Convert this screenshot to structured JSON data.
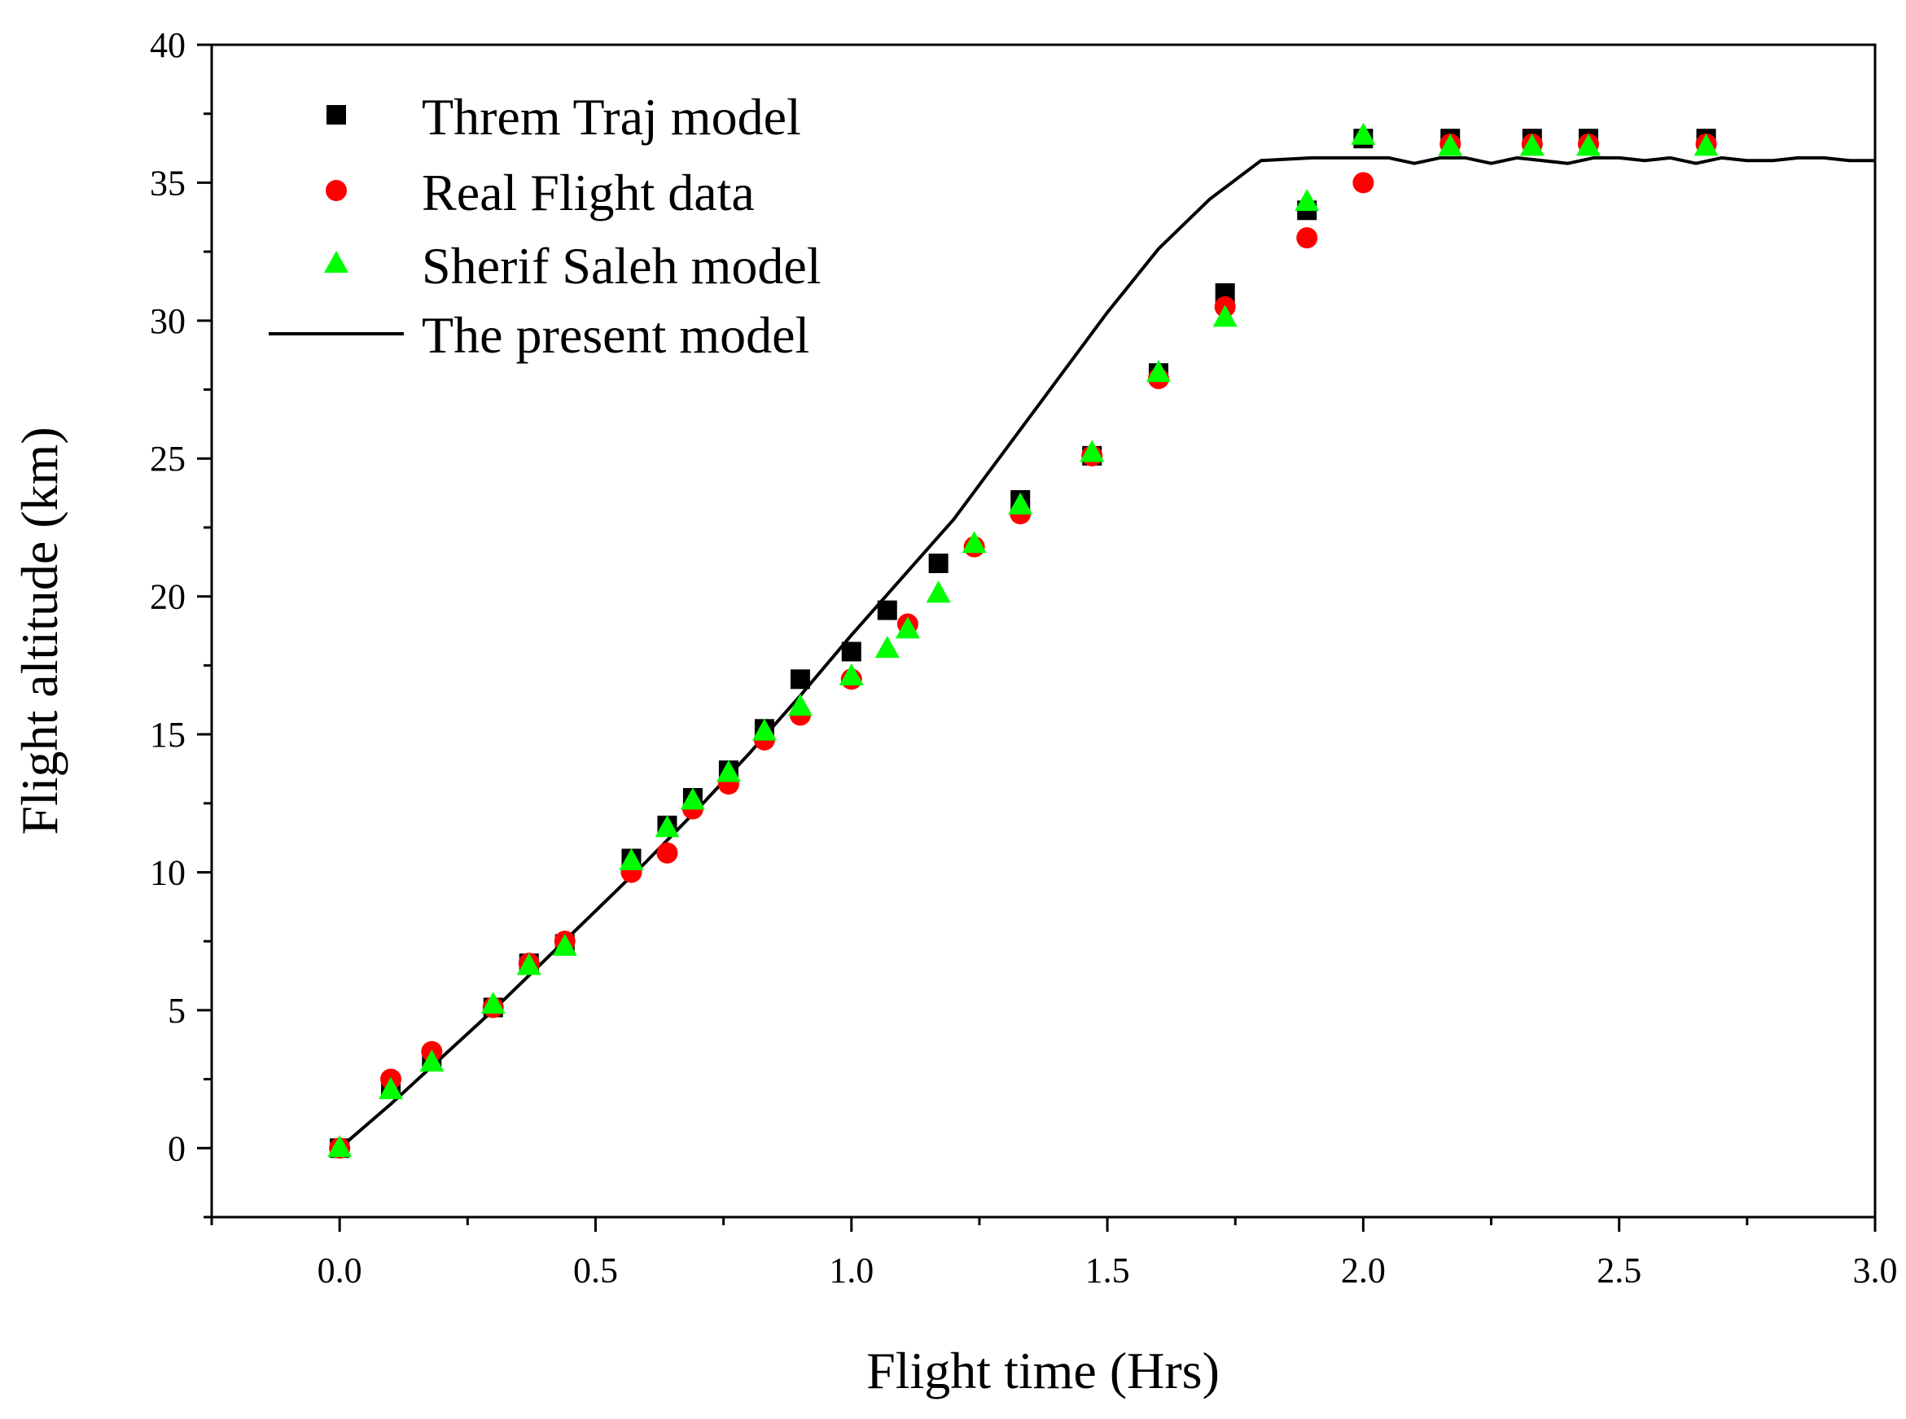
{
  "chart_data": {
    "type": "scatter",
    "title": "",
    "xlabel": "Flight time (Hrs)",
    "ylabel": "Flight altitude (km)",
    "xlim": [
      -0.25,
      3.0
    ],
    "ylim": [
      -2.5,
      40
    ],
    "xticks": [
      0.0,
      0.5,
      1.0,
      1.5,
      2.0,
      2.5,
      3.0
    ],
    "xtick_labels": [
      "0.0",
      "0.5",
      "1.0",
      "1.5",
      "2.0",
      "2.5",
      "3.0"
    ],
    "yticks": [
      0,
      5,
      10,
      15,
      20,
      25,
      30,
      35,
      40
    ],
    "ytick_labels": [
      "0",
      "5",
      "10",
      "15",
      "20",
      "25",
      "30",
      "35",
      "40"
    ],
    "grid": false,
    "legend_position": "top-left",
    "series": [
      {
        "name": "Threm Traj model",
        "marker": "square",
        "color": "#000000",
        "x": [
          0.0,
          0.1,
          0.18,
          0.3,
          0.37,
          0.44,
          0.57,
          0.64,
          0.69,
          0.76,
          0.83,
          0.9,
          1.0,
          1.07,
          1.17,
          1.33,
          1.47,
          1.6,
          1.73,
          1.89,
          2.0,
          2.17,
          2.33,
          2.44,
          2.67
        ],
        "y": [
          0.0,
          2.2,
          3.3,
          5.1,
          6.7,
          7.4,
          10.5,
          11.7,
          12.7,
          13.7,
          15.2,
          17.0,
          18.0,
          19.5,
          21.2,
          23.5,
          25.1,
          28.1,
          31.0,
          34.0,
          36.6,
          36.6,
          36.6,
          36.6,
          36.6
        ]
      },
      {
        "name": "Real Flight data",
        "marker": "circle",
        "color": "#ff0000",
        "x": [
          0.0,
          0.1,
          0.18,
          0.3,
          0.37,
          0.44,
          0.57,
          0.64,
          0.69,
          0.76,
          0.83,
          0.9,
          1.0,
          1.11,
          1.24,
          1.33,
          1.47,
          1.6,
          1.73,
          1.89,
          2.0,
          2.17,
          2.33,
          2.44,
          2.67
        ],
        "y": [
          0.0,
          2.5,
          3.5,
          5.1,
          6.7,
          7.5,
          10.0,
          10.7,
          12.3,
          13.2,
          14.8,
          15.7,
          17.0,
          19.0,
          21.8,
          23.0,
          25.1,
          27.9,
          30.5,
          33.0,
          35.0,
          36.4,
          36.4,
          36.4,
          36.4
        ]
      },
      {
        "name": "Sherif Saleh model",
        "marker": "triangle",
        "color": "#00ff00",
        "x": [
          0.0,
          0.1,
          0.18,
          0.3,
          0.37,
          0.44,
          0.57,
          0.64,
          0.69,
          0.76,
          0.83,
          0.9,
          1.0,
          1.07,
          1.11,
          1.17,
          1.24,
          1.33,
          1.47,
          1.6,
          1.73,
          1.89,
          2.0,
          2.17,
          2.33,
          2.44,
          2.67
        ],
        "y": [
          0.0,
          2.1,
          3.1,
          5.2,
          6.6,
          7.3,
          10.4,
          11.6,
          12.6,
          13.6,
          15.1,
          16.0,
          17.1,
          18.1,
          18.8,
          20.1,
          21.9,
          23.3,
          25.2,
          28.1,
          30.1,
          34.3,
          36.7,
          36.3,
          36.3,
          36.3,
          36.3
        ]
      },
      {
        "name": "The present model",
        "marker": "line",
        "color": "#000000",
        "x": [
          0.0,
          0.1,
          0.2,
          0.3,
          0.4,
          0.5,
          0.6,
          0.7,
          0.8,
          0.9,
          1.0,
          1.1,
          1.2,
          1.3,
          1.4,
          1.5,
          1.6,
          1.7,
          1.8,
          1.9,
          2.0,
          2.05,
          2.1,
          2.15,
          2.2,
          2.25,
          2.3,
          2.35,
          2.4,
          2.45,
          2.5,
          2.55,
          2.6,
          2.65,
          2.7,
          2.75,
          2.8,
          2.85,
          2.9,
          2.95,
          3.0
        ],
        "y": [
          0.0,
          1.6,
          3.3,
          5.0,
          6.8,
          8.6,
          10.4,
          12.3,
          14.3,
          16.4,
          18.6,
          20.7,
          22.8,
          25.3,
          27.8,
          30.3,
          32.6,
          34.4,
          35.8,
          35.9,
          35.9,
          35.9,
          35.7,
          35.9,
          35.9,
          35.7,
          35.9,
          35.8,
          35.7,
          35.9,
          35.9,
          35.8,
          35.9,
          35.7,
          35.9,
          35.8,
          35.8,
          35.9,
          35.9,
          35.8,
          35.8
        ]
      }
    ]
  }
}
